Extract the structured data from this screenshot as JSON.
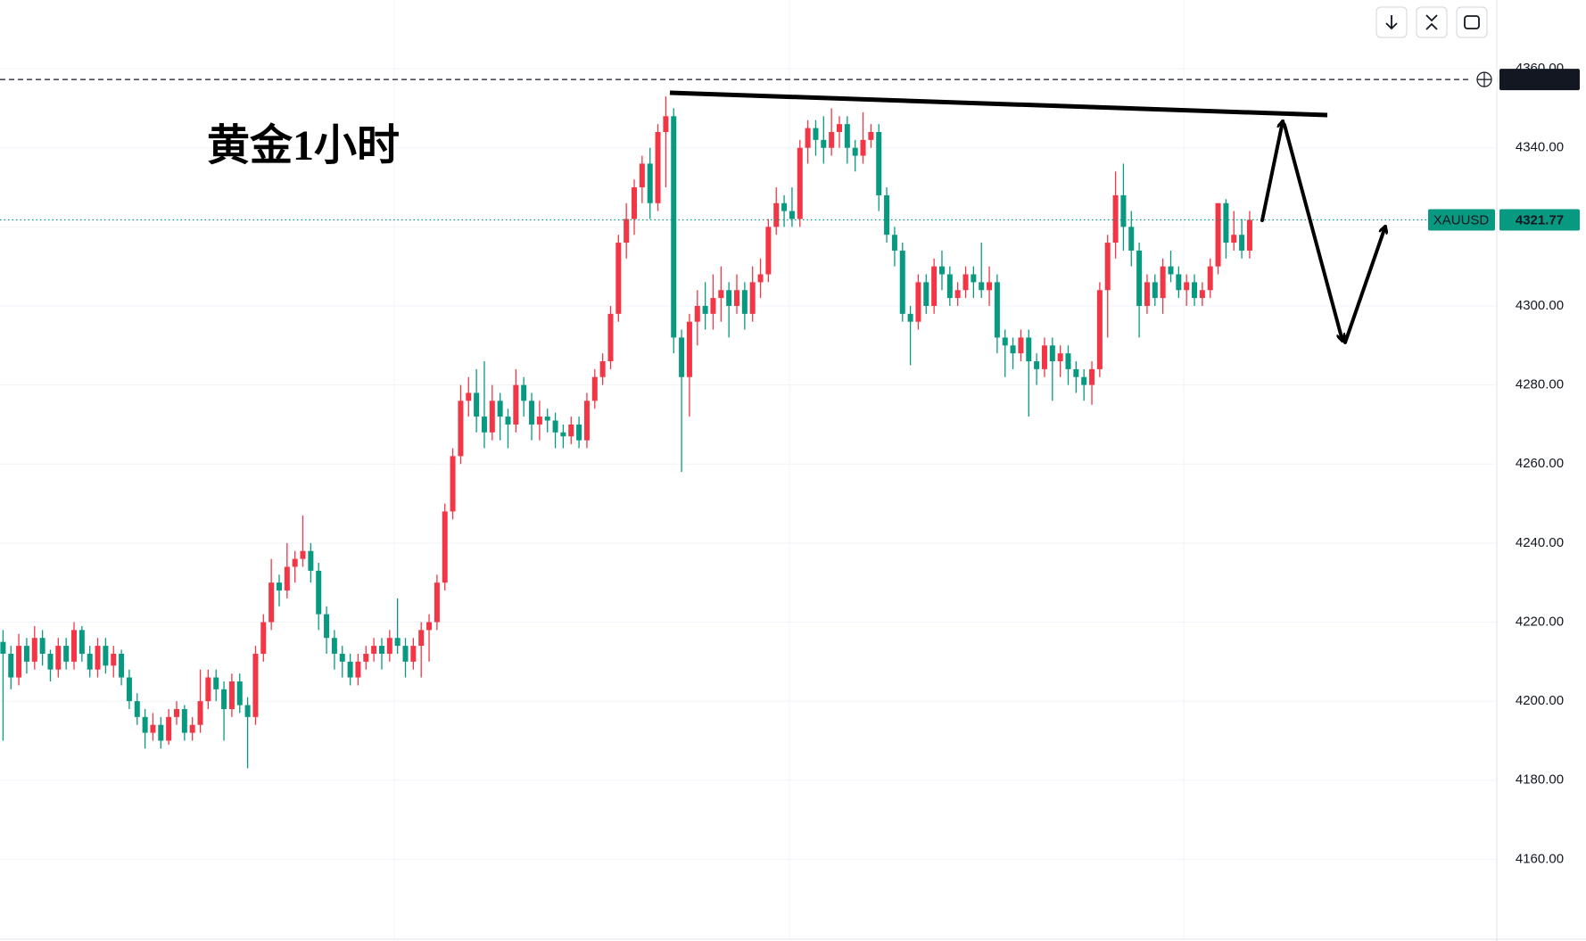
{
  "chart_data": {
    "type": "candlestick",
    "title": "黄金1小时",
    "up_color": "#f23645",
    "down_color": "#089981",
    "grid": true,
    "ylim": [
      4140,
      4377.4
    ],
    "yticks": [
      {
        "value": 4160,
        "label": "4160.00"
      },
      {
        "value": 4180,
        "label": "4180.00"
      },
      {
        "value": 4200,
        "label": "4200.00"
      },
      {
        "value": 4220,
        "label": "4220.00"
      },
      {
        "value": 4240,
        "label": "4240.00"
      },
      {
        "value": 4260,
        "label": "4260.00"
      },
      {
        "value": 4280,
        "label": "4280.00"
      },
      {
        "value": 4300,
        "label": "4300.00"
      },
      {
        "value": 4320,
        "label": "4320.00"
      },
      {
        "value": 4340,
        "label": "4340.00"
      },
      {
        "value": 4360,
        "label": "4360.00"
      }
    ],
    "price_lines": [
      {
        "value": 4357.29,
        "style": "dashed",
        "color": "#131722"
      },
      {
        "label": "XAUUSD",
        "value": 4321.77,
        "style": "dotted",
        "color": "#089981"
      }
    ],
    "candles": [
      [
        4215,
        4218,
        4190,
        4212
      ],
      [
        4212,
        4214,
        4203,
        4206
      ],
      [
        4206,
        4217,
        4204,
        4214
      ],
      [
        4214,
        4216,
        4207,
        4210
      ],
      [
        4210,
        4219,
        4208,
        4216
      ],
      [
        4216,
        4218,
        4209,
        4212
      ],
      [
        4212,
        4213,
        4205,
        4208
      ],
      [
        4208,
        4216,
        4206,
        4214
      ],
      [
        4214,
        4216,
        4208,
        4210
      ],
      [
        4210,
        4220,
        4208,
        4218
      ],
      [
        4218,
        4219,
        4210,
        4212
      ],
      [
        4212,
        4214,
        4206,
        4208
      ],
      [
        4208,
        4216,
        4206,
        4214
      ],
      [
        4214,
        4216,
        4207,
        4209
      ],
      [
        4209,
        4214,
        4206,
        4212
      ],
      [
        4212,
        4213,
        4204,
        4206
      ],
      [
        4206,
        4208,
        4198,
        4200
      ],
      [
        4200,
        4202,
        4194,
        4196
      ],
      [
        4196,
        4198,
        4188,
        4192
      ],
      [
        4192,
        4197,
        4190,
        4194
      ],
      [
        4194,
        4196,
        4188,
        4190
      ],
      [
        4190,
        4198,
        4189,
        4196
      ],
      [
        4196,
        4200,
        4194,
        4198
      ],
      [
        4198,
        4199,
        4190,
        4192
      ],
      [
        4192,
        4196,
        4190,
        4194
      ],
      [
        4194,
        4208,
        4192,
        4200
      ],
      [
        4200,
        4208,
        4198,
        4206
      ],
      [
        4206,
        4208,
        4200,
        4203
      ],
      [
        4203,
        4205,
        4190,
        4198
      ],
      [
        4198,
        4207,
        4196,
        4205
      ],
      [
        4205,
        4207,
        4197,
        4199
      ],
      [
        4199,
        4201,
        4183,
        4196
      ],
      [
        4196,
        4214,
        4194,
        4212
      ],
      [
        4212,
        4222,
        4210,
        4220
      ],
      [
        4220,
        4236,
        4218,
        4230
      ],
      [
        4230,
        4232,
        4224,
        4228
      ],
      [
        4228,
        4240,
        4226,
        4234
      ],
      [
        4234,
        4238,
        4230,
        4236
      ],
      [
        4236,
        4247,
        4234,
        4238
      ],
      [
        4238,
        4240,
        4230,
        4233
      ],
      [
        4233,
        4235,
        4218,
        4222
      ],
      [
        4222,
        4224,
        4212,
        4216
      ],
      [
        4216,
        4218,
        4208,
        4212
      ],
      [
        4212,
        4214,
        4206,
        4210
      ],
      [
        4210,
        4212,
        4204,
        4206
      ],
      [
        4206,
        4212,
        4204,
        4210
      ],
      [
        4210,
        4214,
        4208,
        4212
      ],
      [
        4212,
        4216,
        4210,
        4214
      ],
      [
        4214,
        4216,
        4208,
        4212
      ],
      [
        4212,
        4218,
        4210,
        4216
      ],
      [
        4216,
        4226,
        4212,
        4214
      ],
      [
        4214,
        4216,
        4206,
        4210
      ],
      [
        4210,
        4216,
        4208,
        4214
      ],
      [
        4214,
        4220,
        4206,
        4218
      ],
      [
        4218,
        4222,
        4210,
        4220
      ],
      [
        4220,
        4232,
        4218,
        4230
      ],
      [
        4230,
        4250,
        4228,
        4248
      ],
      [
        4248,
        4264,
        4246,
        4262
      ],
      [
        4262,
        4280,
        4260,
        4276
      ],
      [
        4276,
        4282,
        4272,
        4278
      ],
      [
        4278,
        4284,
        4268,
        4272
      ],
      [
        4272,
        4286,
        4264,
        4268
      ],
      [
        4268,
        4280,
        4266,
        4276
      ],
      [
        4276,
        4278,
        4266,
        4272
      ],
      [
        4272,
        4274,
        4264,
        4270
      ],
      [
        4270,
        4284,
        4268,
        4280
      ],
      [
        4280,
        4282,
        4272,
        4276
      ],
      [
        4276,
        4278,
        4266,
        4270
      ],
      [
        4270,
        4276,
        4266,
        4272
      ],
      [
        4272,
        4274,
        4268,
        4271
      ],
      [
        4271,
        4273,
        4264,
        4268
      ],
      [
        4268,
        4270,
        4264,
        4267
      ],
      [
        4267,
        4272,
        4265,
        4270
      ],
      [
        4270,
        4272,
        4264,
        4266
      ],
      [
        4266,
        4278,
        4264,
        4276
      ],
      [
        4276,
        4284,
        4274,
        4282
      ],
      [
        4282,
        4288,
        4280,
        4286
      ],
      [
        4286,
        4300,
        4284,
        4298
      ],
      [
        4298,
        4318,
        4296,
        4316
      ],
      [
        4316,
        4326,
        4312,
        4322
      ],
      [
        4322,
        4332,
        4318,
        4330
      ],
      [
        4330,
        4338,
        4326,
        4336
      ],
      [
        4336,
        4340,
        4322,
        4326
      ],
      [
        4326,
        4346,
        4324,
        4344
      ],
      [
        4344,
        4353,
        4330,
        4348
      ],
      [
        4348,
        4350,
        4288,
        4292
      ],
      [
        4292,
        4294,
        4258,
        4282
      ],
      [
        4282,
        4298,
        4272,
        4296
      ],
      [
        4296,
        4304,
        4290,
        4300
      ],
      [
        4300,
        4306,
        4294,
        4298
      ],
      [
        4298,
        4308,
        4294,
        4302
      ],
      [
        4302,
        4310,
        4296,
        4304
      ],
      [
        4304,
        4306,
        4292,
        4300
      ],
      [
        4300,
        4308,
        4298,
        4304
      ],
      [
        4304,
        4306,
        4294,
        4298
      ],
      [
        4298,
        4310,
        4296,
        4306
      ],
      [
        4306,
        4312,
        4302,
        4308
      ],
      [
        4308,
        4322,
        4306,
        4320
      ],
      [
        4320,
        4330,
        4318,
        4326
      ],
      [
        4326,
        4328,
        4320,
        4324
      ],
      [
        4324,
        4330,
        4320,
        4322
      ],
      [
        4322,
        4342,
        4320,
        4340
      ],
      [
        4340,
        4347,
        4336,
        4345
      ],
      [
        4345,
        4347,
        4338,
        4342
      ],
      [
        4342,
        4348,
        4336,
        4340
      ],
      [
        4340,
        4350,
        4338,
        4344
      ],
      [
        4344,
        4348,
        4340,
        4346
      ],
      [
        4346,
        4348,
        4336,
        4340
      ],
      [
        4340,
        4342,
        4334,
        4338
      ],
      [
        4338,
        4349,
        4336,
        4342
      ],
      [
        4342,
        4346,
        4340,
        4344
      ],
      [
        4344,
        4346,
        4324,
        4328
      ],
      [
        4328,
        4330,
        4316,
        4318
      ],
      [
        4318,
        4320,
        4310,
        4314
      ],
      [
        4314,
        4316,
        4296,
        4298
      ],
      [
        4298,
        4300,
        4285,
        4296
      ],
      [
        4296,
        4308,
        4294,
        4306
      ],
      [
        4306,
        4308,
        4298,
        4300
      ],
      [
        4300,
        4312,
        4298,
        4310
      ],
      [
        4310,
        4314,
        4304,
        4308
      ],
      [
        4308,
        4310,
        4300,
        4302
      ],
      [
        4302,
        4306,
        4300,
        4304
      ],
      [
        4304,
        4310,
        4302,
        4308
      ],
      [
        4308,
        4310,
        4302,
        4306
      ],
      [
        4306,
        4316,
        4302,
        4304
      ],
      [
        4304,
        4310,
        4300,
        4306
      ],
      [
        4306,
        4308,
        4288,
        4292
      ],
      [
        4292,
        4294,
        4282,
        4290
      ],
      [
        4290,
        4292,
        4284,
        4288
      ],
      [
        4288,
        4294,
        4286,
        4292
      ],
      [
        4292,
        4294,
        4272,
        4286
      ],
      [
        4286,
        4288,
        4280,
        4284
      ],
      [
        4284,
        4292,
        4282,
        4290
      ],
      [
        4290,
        4292,
        4276,
        4286
      ],
      [
        4286,
        4290,
        4282,
        4288
      ],
      [
        4288,
        4290,
        4280,
        4284
      ],
      [
        4284,
        4286,
        4278,
        4282
      ],
      [
        4282,
        4284,
        4276,
        4280
      ],
      [
        4280,
        4286,
        4275,
        4284
      ],
      [
        4284,
        4306,
        4282,
        4304
      ],
      [
        4304,
        4318,
        4292,
        4316
      ],
      [
        4316,
        4334,
        4312,
        4328
      ],
      [
        4328,
        4336,
        4314,
        4320
      ],
      [
        4320,
        4324,
        4310,
        4314
      ],
      [
        4314,
        4316,
        4292,
        4300
      ],
      [
        4300,
        4308,
        4298,
        4306
      ],
      [
        4306,
        4308,
        4300,
        4302
      ],
      [
        4302,
        4312,
        4298,
        4310
      ],
      [
        4310,
        4314,
        4306,
        4308
      ],
      [
        4308,
        4310,
        4302,
        4304
      ],
      [
        4304,
        4308,
        4300,
        4306
      ],
      [
        4306,
        4308,
        4300,
        4302
      ],
      [
        4302,
        4306,
        4300,
        4304
      ],
      [
        4304,
        4312,
        4302,
        4310
      ],
      [
        4310,
        4326,
        4308,
        4326
      ],
      [
        4326,
        4327,
        4312,
        4316
      ],
      [
        4316,
        4324,
        4314,
        4318
      ],
      [
        4318,
        4322,
        4312,
        4314
      ],
      [
        4314,
        4324,
        4312,
        4321.77
      ]
    ]
  }
}
